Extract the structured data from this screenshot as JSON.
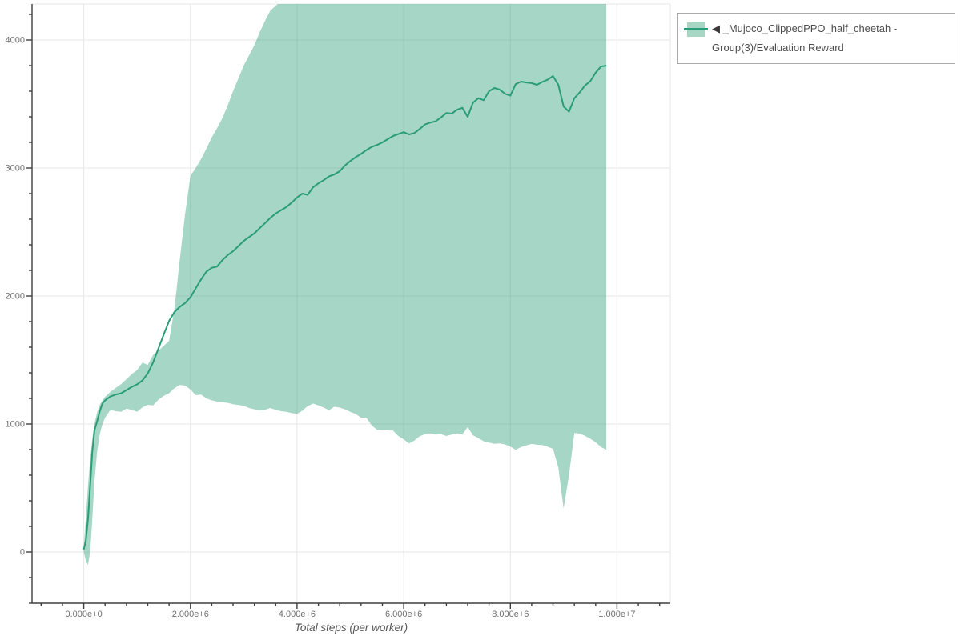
{
  "legend": {
    "marker_icon": "◀",
    "label": "_Mujoco_ClippedPPO_half_cheetah - Group(3)/Evaluation Reward"
  },
  "colors": {
    "line": "#2a9d78",
    "band_fill": "rgba(42,157,120,0.42)",
    "grid": "#e7e7e7",
    "axis": "#3f3f3f",
    "tick_label": "#6e6e6e",
    "axis_title": "#555555",
    "legend_border": "#ababab",
    "legend_text": "#4d4d4d"
  },
  "chart_data": {
    "type": "line",
    "title": "",
    "xlabel": "Total steps (per worker)",
    "ylabel": "",
    "legend_position": "top-right",
    "grid": true,
    "xlim": [
      -970000,
      11000000
    ],
    "ylim": [
      -400,
      4281
    ],
    "x_minor_step": 400000,
    "y_minor_step": 200,
    "x_ticks": [
      {
        "value": 0,
        "label": "0.000e+0"
      },
      {
        "value": 2000000,
        "label": "2.000e+6"
      },
      {
        "value": 4000000,
        "label": "4.000e+6"
      },
      {
        "value": 6000000,
        "label": "6.000e+6"
      },
      {
        "value": 8000000,
        "label": "8.000e+6"
      },
      {
        "value": 10000000,
        "label": "1.000e+7"
      }
    ],
    "y_ticks": [
      {
        "value": 0,
        "label": "0"
      },
      {
        "value": 1000,
        "label": "1000"
      },
      {
        "value": 2000,
        "label": "2000"
      },
      {
        "value": 3000,
        "label": "3000"
      },
      {
        "value": 4000,
        "label": "4000"
      }
    ],
    "series": [
      {
        "name": "_Mujoco_ClippedPPO_half_cheetah - Group(3)/Evaluation Reward",
        "line_color": "#2a9d78",
        "band_color": "rgba(42,157,120,0.42)",
        "x": [
          0,
          40000,
          80000,
          120000,
          160000,
          200000,
          250000,
          300000,
          350000,
          400000,
          500000,
          600000,
          700000,
          800000,
          900000,
          1000000,
          1100000,
          1200000,
          1300000,
          1400000,
          1500000,
          1600000,
          1700000,
          1800000,
          1900000,
          2000000,
          2100000,
          2200000,
          2300000,
          2400000,
          2500000,
          2600000,
          2700000,
          2800000,
          2900000,
          3000000,
          3100000,
          3200000,
          3300000,
          3400000,
          3500000,
          3600000,
          3700000,
          3800000,
          3900000,
          4000000,
          4100000,
          4200000,
          4300000,
          4400000,
          4500000,
          4600000,
          4700000,
          4800000,
          4900000,
          5000000,
          5100000,
          5200000,
          5300000,
          5400000,
          5500000,
          5600000,
          5700000,
          5800000,
          5900000,
          6000000,
          6100000,
          6200000,
          6300000,
          6400000,
          6500000,
          6600000,
          6700000,
          6800000,
          6900000,
          7000000,
          7100000,
          7200000,
          7300000,
          7400000,
          7500000,
          7600000,
          7700000,
          7800000,
          7900000,
          8000000,
          8100000,
          8200000,
          8300000,
          8400000,
          8500000,
          8600000,
          8700000,
          8800000,
          8900000,
          9000000,
          9100000,
          9200000,
          9300000,
          9400000,
          9500000,
          9600000,
          9700000,
          9800000
        ],
        "mean": [
          20,
          90,
          260,
          520,
          780,
          950,
          1020,
          1100,
          1160,
          1185,
          1215,
          1230,
          1240,
          1265,
          1290,
          1310,
          1340,
          1395,
          1480,
          1590,
          1700,
          1805,
          1875,
          1915,
          1945,
          1990,
          2060,
          2130,
          2190,
          2220,
          2230,
          2280,
          2320,
          2350,
          2390,
          2430,
          2460,
          2490,
          2530,
          2570,
          2610,
          2645,
          2670,
          2695,
          2730,
          2770,
          2800,
          2790,
          2850,
          2880,
          2905,
          2935,
          2950,
          2975,
          3020,
          3055,
          3085,
          3110,
          3140,
          3165,
          3180,
          3200,
          3225,
          3250,
          3265,
          3280,
          3262,
          3272,
          3305,
          3340,
          3355,
          3365,
          3395,
          3430,
          3425,
          3455,
          3470,
          3400,
          3510,
          3545,
          3530,
          3600,
          3625,
          3612,
          3580,
          3565,
          3655,
          3675,
          3668,
          3663,
          3650,
          3672,
          3690,
          3718,
          3650,
          3480,
          3440,
          3545,
          3590,
          3645,
          3678,
          3745,
          3792,
          3800
        ],
        "lower": [
          0,
          -70,
          -100,
          0,
          250,
          550,
          780,
          920,
          1000,
          1050,
          1110,
          1100,
          1095,
          1120,
          1110,
          1095,
          1130,
          1150,
          1145,
          1190,
          1220,
          1240,
          1280,
          1305,
          1300,
          1270,
          1225,
          1230,
          1200,
          1185,
          1175,
          1170,
          1165,
          1155,
          1148,
          1142,
          1125,
          1115,
          1107,
          1112,
          1125,
          1110,
          1100,
          1095,
          1085,
          1080,
          1105,
          1140,
          1160,
          1145,
          1128,
          1108,
          1135,
          1128,
          1115,
          1094,
          1078,
          1050,
          1048,
          990,
          955,
          952,
          955,
          948,
          906,
          880,
          848,
          870,
          905,
          920,
          927,
          917,
          920,
          906,
          917,
          927,
          917,
          975,
          912,
          890,
          865,
          855,
          845,
          848,
          840,
          823,
          798,
          820,
          833,
          844,
          838,
          836,
          822,
          806,
          660,
          340,
          600,
          930,
          925,
          908,
          885,
          858,
          820,
          798
        ],
        "upper": [
          50,
          260,
          520,
          720,
          880,
          1000,
          1090,
          1150,
          1185,
          1212,
          1252,
          1282,
          1312,
          1350,
          1390,
          1422,
          1480,
          1462,
          1540,
          1572,
          1612,
          1648,
          1900,
          2280,
          2640,
          2940,
          3000,
          3070,
          3150,
          3240,
          3310,
          3390,
          3490,
          3600,
          3700,
          3800,
          3880,
          3960,
          4060,
          4150,
          4230,
          4268,
          4300,
          4340,
          4360,
          4360,
          4360,
          4360,
          4360,
          4360,
          4360,
          4360,
          4360,
          4360,
          4360,
          4360,
          4360,
          4360,
          4360,
          4360,
          4360,
          4360,
          4360,
          4360,
          4360,
          4360,
          4360,
          4360,
          4360,
          4360,
          4360,
          4360,
          4360,
          4360,
          4360,
          4360,
          4360,
          4360,
          4360,
          4360,
          4360,
          4360,
          4360,
          4360,
          4360,
          4360,
          4360,
          4360,
          4360,
          4360,
          4360,
          4360,
          4360,
          4360,
          4360,
          4360,
          4360,
          4360,
          4360,
          4360,
          4360,
          4360,
          4360,
          4360
        ]
      }
    ]
  }
}
